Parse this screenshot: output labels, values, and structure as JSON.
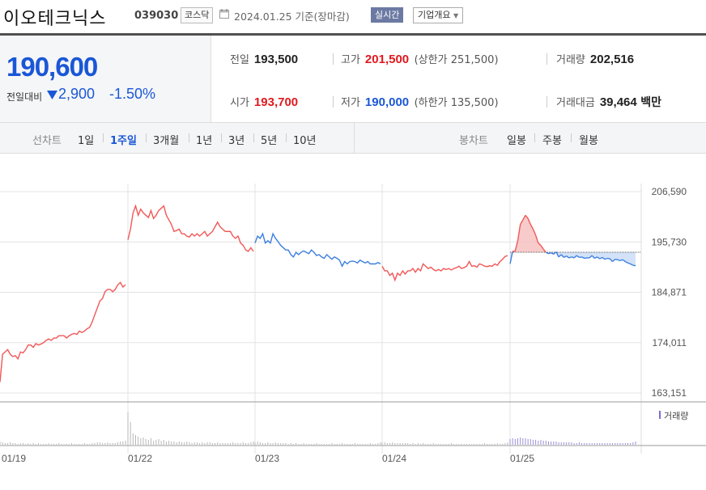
{
  "header": {
    "name": "이오테크닉스",
    "code": "039030",
    "market": "코스닥",
    "date": "2024.01.25 기준(장마감)",
    "realtime": "실시간",
    "company_info": "기업개요"
  },
  "quote": {
    "price": "190,600",
    "change_label": "전일대비",
    "change_amount": "2,900",
    "change_rate": "-1.50%",
    "direction": "down",
    "prev_close_label": "전일",
    "prev_close": "193,500",
    "high_label": "고가",
    "high": "201,500",
    "upper_limit": "(상한가 251,500)",
    "volume_label": "거래량",
    "volume": "202,516",
    "open_label": "시가",
    "open": "193,700",
    "low_label": "저가",
    "low": "190,000",
    "lower_limit": "(하한가 135,500)",
    "value_label": "거래대금",
    "value": "39,464",
    "value_unit": "백만"
  },
  "tabs": {
    "line_label": "선차트",
    "line_items": [
      "1일",
      "1주일",
      "3개월",
      "1년",
      "3년",
      "5년",
      "10년"
    ],
    "active": "1주일",
    "candle_label": "봉차트",
    "candle_items": [
      "일봉",
      "주봉",
      "월봉"
    ]
  },
  "colors": {
    "up": "#e0191e",
    "down": "#1a57d6",
    "line_up": "#f25757",
    "line_down": "#3c7fe0",
    "grid": "#e3e3e3"
  },
  "chart_data": {
    "type": "line",
    "y_ticks": [
      "206,590",
      "195,730",
      "184,871",
      "174,011",
      "163,151"
    ],
    "ylim": [
      163151,
      206590
    ],
    "x_ticks": [
      "01/19",
      "01/22",
      "01/23",
      "01/24",
      "01/25"
    ],
    "baseline": 193500,
    "volume_legend": "거래량",
    "days": [
      {
        "label": "01/19",
        "prices": [
          165500,
          171500,
          172000,
          172500,
          171500,
          171000,
          171200,
          170500,
          172000,
          171800,
          172500,
          173500,
          173500,
          173000,
          173800,
          173500,
          173700,
          174000,
          174500,
          174800,
          174500,
          175000,
          175000,
          175500,
          175500,
          175500,
          175000,
          175500,
          175800,
          176000,
          175800,
          176500,
          176200,
          176500,
          177000,
          177300,
          178500,
          180000,
          181500,
          183000,
          183500,
          185000,
          185500,
          185500,
          185000,
          185500,
          186500,
          187000,
          186000,
          186500
        ]
      },
      {
        "label": "01/22",
        "prices": [
          196200,
          198500,
          202000,
          203500,
          201500,
          202800,
          202000,
          201500,
          201000,
          202500,
          200800,
          201500,
          202500,
          203000,
          203500,
          201500,
          200500,
          199500,
          198000,
          198200,
          198500,
          197500,
          197500,
          197000,
          196800,
          197500,
          197000,
          197500,
          197000,
          197500,
          198000,
          197000,
          197500,
          198000,
          199000,
          200000,
          199000,
          198500,
          198000,
          198000,
          198000,
          197000,
          196500,
          197000,
          195500,
          195000,
          194000,
          193700,
          194500,
          193700
        ]
      },
      {
        "label": "01/23",
        "prices": [
          195500,
          197000,
          196500,
          197500,
          195500,
          196000,
          195500,
          197500,
          196500,
          195800,
          195000,
          194500,
          194000,
          194000,
          193000,
          192500,
          193500,
          193000,
          193500,
          193800,
          193500,
          193200,
          194000,
          193500,
          192800,
          193000,
          192500,
          192200,
          193000,
          192500,
          192000,
          192500,
          192200,
          191800,
          190500,
          191500,
          191000,
          191500,
          191600,
          191500,
          191200,
          191800,
          191500,
          191200,
          191500,
          191000,
          191000,
          191000,
          191300,
          191000
        ]
      },
      {
        "label": "01/24",
        "prices": [
          190500,
          189500,
          189500,
          188500,
          189000,
          187500,
          189000,
          188500,
          189500,
          188800,
          189500,
          189500,
          190000,
          189200,
          190000,
          189500,
          191000,
          190500,
          190000,
          190300,
          189800,
          189500,
          189800,
          189500,
          190000,
          189800,
          190000,
          189700,
          190000,
          190200,
          190500,
          190000,
          190200,
          190500,
          191500,
          190500,
          190600,
          190300,
          191000,
          190800,
          190500,
          190400,
          190600,
          190500,
          191000,
          190700,
          191500,
          192000,
          192600,
          192800
        ]
      },
      {
        "label": "01/25",
        "prices": [
          191000,
          193700,
          193800,
          196000,
          199500,
          200500,
          201500,
          200800,
          199500,
          198500,
          197200,
          195500,
          195000,
          194200,
          193500,
          193200,
          193400,
          193100,
          193600,
          192500,
          193000,
          192400,
          192700,
          192300,
          192500,
          192300,
          192800,
          192400,
          192500,
          192200,
          192300,
          192300,
          192800,
          192200,
          192500,
          192100,
          192400,
          192000,
          192200,
          192100,
          191500,
          192000,
          191900,
          191700,
          191900,
          191500,
          191200,
          191000,
          190700,
          190600
        ]
      }
    ],
    "volumes": [
      [
        4,
        3,
        2,
        2,
        3,
        2,
        2,
        1,
        2,
        2,
        1,
        2,
        1,
        2,
        1,
        2,
        1,
        1,
        1,
        2,
        1,
        1,
        1,
        2,
        1,
        1,
        1,
        1,
        2,
        1,
        1,
        1,
        1,
        2,
        1,
        1,
        2,
        2,
        3,
        3,
        2,
        2,
        3,
        2,
        2,
        2,
        3,
        4,
        4,
        5
      ],
      [
        40,
        28,
        14,
        12,
        10,
        8,
        9,
        7,
        6,
        8,
        5,
        6,
        7,
        5,
        6,
        4,
        5,
        4,
        4,
        3,
        4,
        3,
        3,
        4,
        3,
        2,
        3,
        3,
        2,
        3,
        2,
        3,
        3,
        2,
        2,
        3,
        2,
        2,
        2,
        2,
        2,
        3,
        2,
        2,
        2,
        3,
        2,
        2,
        3,
        4
      ],
      [
        3,
        4,
        3,
        2,
        2,
        3,
        2,
        2,
        3,
        2,
        2,
        2,
        2,
        1,
        2,
        1,
        2,
        1,
        1,
        2,
        1,
        1,
        1,
        1,
        2,
        1,
        1,
        1,
        1,
        1,
        2,
        1,
        1,
        1,
        2,
        1,
        1,
        1,
        1,
        2,
        1,
        1,
        1,
        1,
        1,
        2,
        1,
        1,
        2,
        3
      ],
      [
        3,
        3,
        2,
        2,
        3,
        2,
        2,
        2,
        2,
        2,
        2,
        1,
        2,
        1,
        2,
        1,
        2,
        1,
        1,
        1,
        2,
        1,
        1,
        1,
        1,
        1,
        1,
        2,
        1,
        1,
        1,
        1,
        1,
        1,
        1,
        1,
        1,
        1,
        1,
        1,
        2,
        1,
        1,
        1,
        1,
        2,
        1,
        1,
        2,
        3
      ],
      [
        7,
        8,
        7,
        8,
        9,
        8,
        8,
        7,
        7,
        6,
        6,
        5,
        6,
        5,
        5,
        4,
        4,
        4,
        4,
        3,
        3,
        3,
        3,
        3,
        3,
        2,
        2,
        3,
        2,
        2,
        2,
        2,
        2,
        2,
        2,
        2,
        2,
        2,
        2,
        2,
        2,
        2,
        2,
        2,
        2,
        2,
        2,
        2,
        3,
        4
      ]
    ]
  }
}
